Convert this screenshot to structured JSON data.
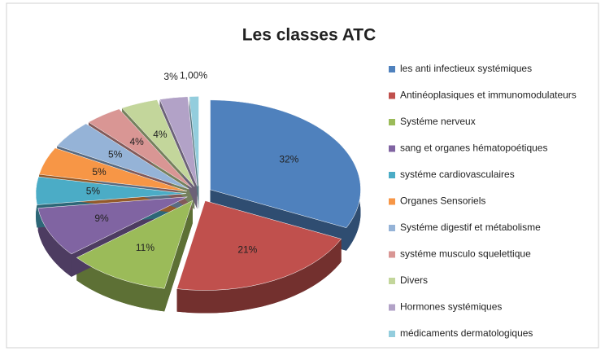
{
  "chart_data": {
    "type": "pie",
    "title": "Les classes  ATC",
    "categories": [
      "les anti infectieux systémiques",
      "Antinéoplasiques et immunomodulateurs",
      "Systéme nerveux",
      "sang et organes hématopoétiques",
      "systéme cardiovasculaires",
      "Organes Sensoriels",
      "Systéme digestif et métabolisme",
      "systéme musculo squelettique",
      "Divers",
      "Hormones systémiques",
      "médicaments dermatologiques"
    ],
    "values": [
      32,
      21,
      11,
      9,
      5,
      5,
      5,
      4,
      4,
      3,
      1
    ],
    "value_labels": [
      "32%",
      "21%",
      "11%",
      "9%",
      "5%",
      "5%",
      "5%",
      "4%",
      "4%",
      "3%",
      "1,00%"
    ],
    "colors": [
      "#4f81bd",
      "#c0504d",
      "#9bbb59",
      "#8064a2",
      "#4bacc6",
      "#f79646",
      "#95b3d7",
      "#d99694",
      "#c3d69b",
      "#b2a2c7",
      "#93cddd"
    ],
    "legend": "right"
  }
}
